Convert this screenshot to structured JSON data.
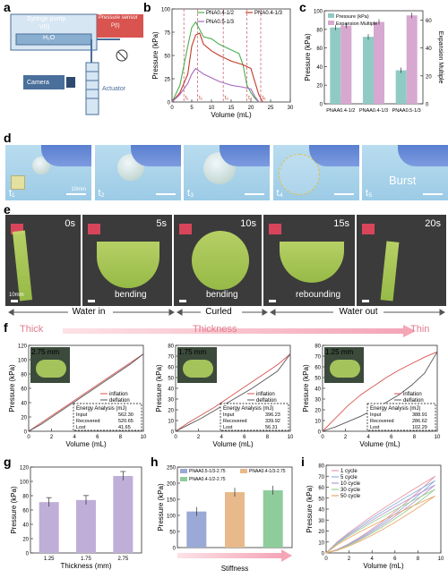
{
  "panel_labels": [
    "a",
    "b",
    "c",
    "d",
    "e",
    "f",
    "g",
    "h",
    "i"
  ],
  "panel_a": {
    "syringe_pump": "Syringe pump",
    "syringe_v": "V(t)",
    "h2o": "H₂O",
    "pressure_sensor": "Pressure sensor",
    "pressure_p": "P(t)",
    "camera": "Camera",
    "actuator": "Actuator"
  },
  "chart_b": {
    "type": "line",
    "xlabel": "Volume (mL)",
    "ylabel": "Pressure (kPa)",
    "xlim": [
      0,
      30
    ],
    "ylim": [
      0,
      100
    ],
    "xticks": [
      "0",
      "5",
      "10",
      "15",
      "20",
      "25",
      "30"
    ],
    "yticks": [
      "0",
      "25",
      "50",
      "75",
      "100"
    ],
    "series": [
      {
        "name": "PNA0.4-1/2",
        "color": "#4caf50",
        "x": [
          0,
          2,
          4,
          5,
          6,
          7,
          8,
          10,
          12,
          15,
          17,
          18,
          19,
          20,
          21,
          22
        ],
        "y": [
          0,
          18,
          60,
          80,
          86,
          78,
          70,
          68,
          62,
          56,
          52,
          40,
          18,
          10,
          4,
          0
        ]
      },
      {
        "name": "PNA0.4-1/3",
        "color": "#c0392b",
        "x": [
          0,
          2,
          4,
          5,
          6,
          7,
          8,
          10,
          12,
          15,
          18,
          20,
          21,
          22,
          23
        ],
        "y": [
          0,
          10,
          30,
          60,
          72,
          74,
          62,
          55,
          50,
          44,
          40,
          36,
          22,
          8,
          0
        ]
      },
      {
        "name": "PNA0.5-1/3",
        "color": "#a569bd",
        "x": [
          0,
          2,
          4,
          5,
          6,
          8,
          10,
          12,
          15,
          18,
          20,
          21,
          22
        ],
        "y": [
          0,
          8,
          20,
          30,
          36,
          30,
          26,
          22,
          18,
          16,
          14,
          6,
          0
        ]
      }
    ],
    "markers": [
      "t₁",
      "t₂",
      "t₃",
      "t₄",
      "t₅"
    ],
    "marker_x": [
      3,
      6.5,
      13,
      19,
      22.5
    ]
  },
  "chart_c": {
    "type": "bar",
    "ylabel": "Pressure (kPa)",
    "y2label": "Expansion Multiple",
    "ylim": [
      0,
      100
    ],
    "yticks": [
      "0",
      "20",
      "40",
      "60",
      "80",
      "100"
    ],
    "y2ticks": [
      "0",
      "20",
      "40",
      "60"
    ],
    "legend": [
      "Pressure (kPa)",
      "Expansion Multiple"
    ],
    "categories": [
      "PNAA0.4-1/2",
      "PNAA0.4-1/3",
      "PNAA0.5-1/3"
    ],
    "pressure": [
      82,
      72,
      36
    ],
    "expansion_scaled": [
      84,
      88,
      95
    ],
    "colors": [
      "#8fcbc4",
      "#d7a8d0"
    ]
  },
  "panel_d": {
    "labels": [
      "t₁",
      "t₂",
      "t₃",
      "t₄",
      "t₅"
    ],
    "scale": "10mm",
    "burst": "Burst"
  },
  "panel_e": {
    "times": [
      "0s",
      "5s",
      "10s",
      "15s",
      "20s"
    ],
    "actions": [
      "bending",
      "bending",
      "rebounding"
    ],
    "scale": "10mm",
    "phases": [
      "Water in",
      "Curled",
      "Water out"
    ]
  },
  "panel_f": {
    "thick": "Thick",
    "thickness": "Thickness",
    "thin": "Thin",
    "xlabel": "Volume (mL)",
    "ylabel": "Pressure (kPa)",
    "legend_inflation": "inflation",
    "legend_deflation": "deflation",
    "energy_title": "Energy Analysis (mJ)",
    "row_labels": [
      "Input",
      "Recovered",
      "Lost"
    ],
    "charts": [
      {
        "thickness_label": "2.75 mm",
        "ylim": [
          0,
          120
        ],
        "yticks": [
          "0",
          "20",
          "40",
          "60",
          "80",
          "100",
          "120"
        ],
        "xticks": [
          "0",
          "2",
          "4",
          "6",
          "8",
          "10"
        ],
        "input": "562.30",
        "recovered": "520.65",
        "lost": "41.65",
        "inflation_y": [
          0,
          12,
          24,
          36,
          48,
          60,
          72,
          84,
          96,
          108
        ],
        "deflation_y": [
          0,
          10,
          22,
          34,
          46,
          58,
          70,
          82,
          94,
          108
        ]
      },
      {
        "thickness_label": "1.75 mm",
        "ylim": [
          0,
          80
        ],
        "yticks": [
          "0",
          "10",
          "20",
          "30",
          "40",
          "50",
          "60",
          "70",
          "80"
        ],
        "xticks": [
          "0",
          "2",
          "4",
          "6",
          "8",
          "10"
        ],
        "input": "396.23",
        "recovered": "339.92",
        "lost": "56.31",
        "inflation_y": [
          0,
          8,
          15,
          22,
          30,
          38,
          46,
          54,
          62,
          72
        ],
        "deflation_y": [
          0,
          6,
          12,
          19,
          26,
          33,
          40,
          48,
          56,
          72
        ]
      },
      {
        "thickness_label": "1.25 mm",
        "ylim": [
          0,
          80
        ],
        "yticks": [
          "0",
          "10",
          "20",
          "30",
          "40",
          "50",
          "60",
          "70",
          "80"
        ],
        "xticks": [
          "0",
          "2",
          "4",
          "6",
          "8",
          "10"
        ],
        "input": "388.91",
        "recovered": "286.62",
        "lost": "102.29",
        "inflation_y": [
          0,
          12,
          24,
          34,
          42,
          50,
          57,
          63,
          69,
          74
        ],
        "deflation_y": [
          0,
          4,
          9,
          14,
          20,
          27,
          34,
          43,
          54,
          74
        ]
      }
    ]
  },
  "chart_g": {
    "type": "bar",
    "xlabel": "Thickness (mm)",
    "ylabel": "Pressure (kPa)",
    "categories": [
      "1.25",
      "1.75",
      "2.75"
    ],
    "values": [
      74,
      77,
      112
    ],
    "ylim": [
      0,
      125
    ],
    "yticks": [
      "0",
      "20",
      "40",
      "60",
      "80",
      "100",
      "120"
    ],
    "color": "#bfaed8"
  },
  "chart_h": {
    "type": "bar",
    "ylabel": "Pressure (kPa)",
    "xlabel": "Stiffness",
    "categories": [
      "PNAA0.5-1/3-2.75",
      "PNAA0.4-1/3-2.75",
      "PNAA0.4-1/2-2.75"
    ],
    "values": [
      112,
      172,
      178
    ],
    "ylim": [
      0,
      250
    ],
    "yticks": [
      "0",
      "50",
      "100",
      "150",
      "200",
      "250"
    ],
    "colors": [
      "#9aa9d6",
      "#e8b98a",
      "#8fcc9c"
    ]
  },
  "chart_i": {
    "type": "line",
    "xlabel": "Volume (mL)",
    "ylabel": "Pressure (kPa)",
    "xlim": [
      0,
      10
    ],
    "ylim": [
      0,
      80
    ],
    "xticks": [
      "0",
      "2",
      "4",
      "6",
      "8",
      "10"
    ],
    "yticks": [
      "0",
      "10",
      "20",
      "30",
      "40",
      "50",
      "60",
      "70",
      "80"
    ],
    "series": [
      {
        "name": "1 cycle",
        "color": "#e89aa6",
        "peak": 70
      },
      {
        "name": "5 cycle",
        "color": "#8fb4e0",
        "peak": 66
      },
      {
        "name": "10 cycle",
        "color": "#b79bd6",
        "peak": 62
      },
      {
        "name": "30 cycle",
        "color": "#9bd08f",
        "peak": 58
      },
      {
        "name": "50 cycle",
        "color": "#e6a86a",
        "peak": 52
      }
    ]
  }
}
